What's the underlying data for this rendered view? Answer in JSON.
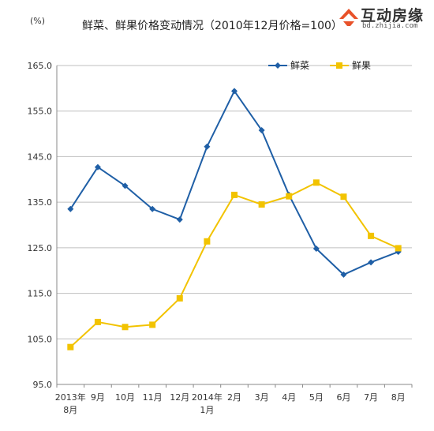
{
  "chart_data": {
    "type": "line",
    "title": "鲜菜、鲜果价格变动情况（2010年12月价格=100）",
    "ylabel": "(%)",
    "xlabel": "",
    "categories": [
      [
        "2013年",
        "8月"
      ],
      [
        "9月"
      ],
      [
        "10月"
      ],
      [
        "11月"
      ],
      [
        "12月"
      ],
      [
        "2014年",
        "1月"
      ],
      [
        "2月"
      ],
      [
        "3月"
      ],
      [
        "4月"
      ],
      [
        "5月"
      ],
      [
        "6月"
      ],
      [
        "7月"
      ],
      [
        "8月"
      ]
    ],
    "ylim": [
      95.0,
      165.0
    ],
    "yticks": [
      "95.0",
      "105.0",
      "115.0",
      "125.0",
      "135.0",
      "145.0",
      "155.0",
      "165.0"
    ],
    "series": [
      {
        "name": "鲜菜",
        "color": "#1f5fa6",
        "marker": "diamond",
        "values": [
          133.5,
          142.7,
          138.6,
          133.5,
          131.2,
          147.2,
          159.4,
          150.8,
          136.6,
          124.8,
          119.1,
          121.8,
          124.1
        ]
      },
      {
        "name": "鲜果",
        "color": "#f2c300",
        "marker": "square",
        "values": [
          103.2,
          108.7,
          107.6,
          108.1,
          113.9,
          126.4,
          136.6,
          134.5,
          136.3,
          139.3,
          136.2,
          127.6,
          124.9
        ]
      }
    ],
    "grid": "horizontal",
    "legend_position": "top-right"
  },
  "watermark": {
    "name": "互动房缘",
    "url": "bd.zhijia.com",
    "color": "#e8522a"
  }
}
